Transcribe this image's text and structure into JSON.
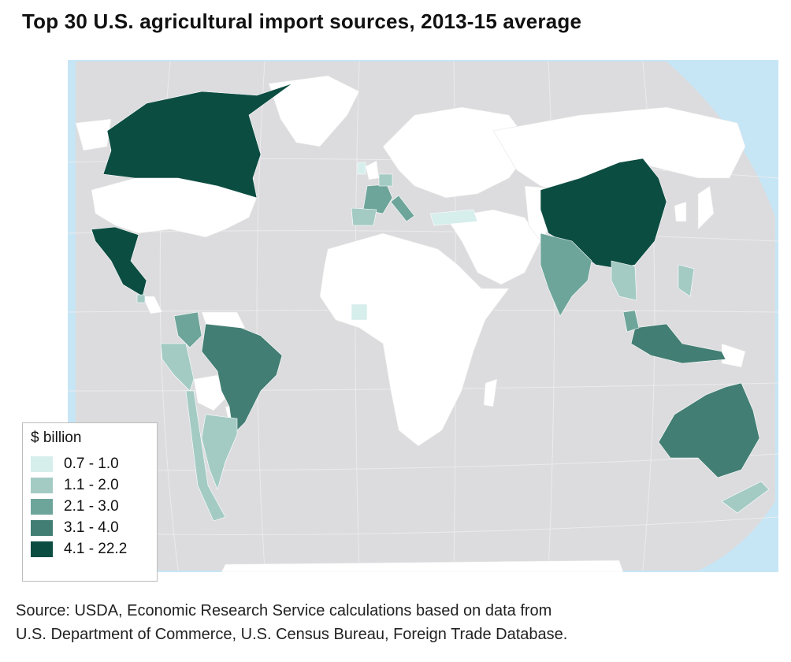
{
  "title": "Top 30 U.S. agricultural import sources, 2013-15 average",
  "legend": {
    "title": "$ billion",
    "items": [
      {
        "label": "0.7 - 1.0",
        "color": "#d6eeec"
      },
      {
        "label": "1.1 - 2.0",
        "color": "#a3cbc4"
      },
      {
        "label": "2.1 - 3.0",
        "color": "#6ea59b"
      },
      {
        "label": "3.1 - 4.0",
        "color": "#427e73"
      },
      {
        "label": "4.1 - 22.2",
        "color": "#0c4d42"
      }
    ]
  },
  "colors": {
    "ocean": "#c6e6f6",
    "background": "#dcdcde",
    "no_data": "#ffffff"
  },
  "source": {
    "line1": "Source: USDA, Economic Research Service calculations based on data from",
    "line2": "U.S. Department of Commerce, U.S. Census Bureau, Foreign Trade Database."
  }
}
